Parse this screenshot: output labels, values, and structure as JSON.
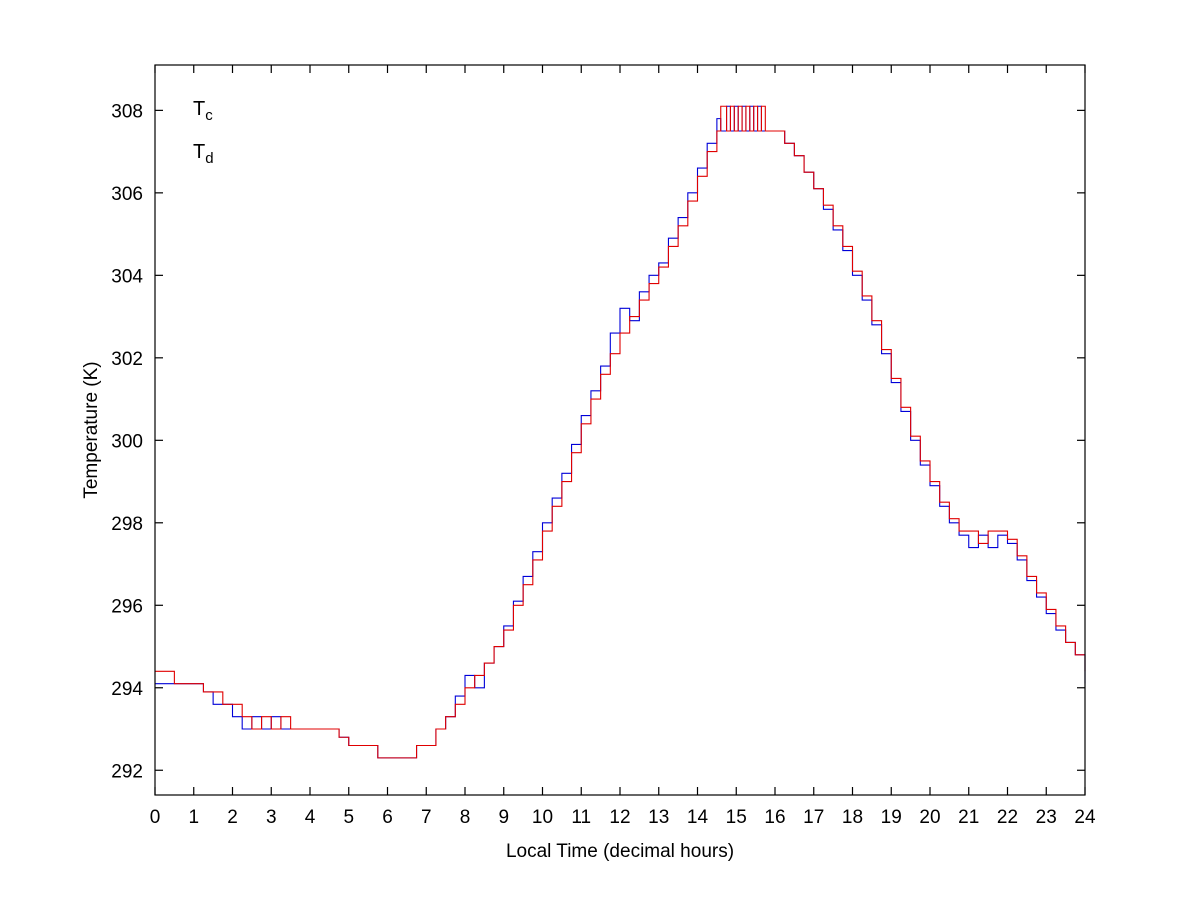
{
  "figure": {
    "background": "#ffffff",
    "axis_color": "#000000"
  },
  "chart_data": {
    "type": "line",
    "line_style": "step",
    "title": "",
    "xlabel": "Local Time (decimal hours)",
    "ylabel": "Temperature (K)",
    "xlim": [
      0,
      24
    ],
    "ylim": [
      291.4,
      309.1
    ],
    "xticks": [
      0,
      1,
      2,
      3,
      4,
      5,
      6,
      7,
      8,
      9,
      10,
      11,
      12,
      13,
      14,
      15,
      16,
      17,
      18,
      19,
      20,
      21,
      22,
      23,
      24
    ],
    "yticks": [
      292,
      294,
      296,
      298,
      300,
      302,
      304,
      306,
      308
    ],
    "grid": false,
    "legend": {
      "position": "top-left-inside",
      "entries": [
        {
          "label": "T_c",
          "color": "#0000d8"
        },
        {
          "label": "T_d",
          "color": "#e00000"
        }
      ]
    },
    "x": [
      0,
      0.25,
      0.5,
      0.75,
      1,
      1.25,
      1.5,
      1.75,
      2,
      2.25,
      2.5,
      2.75,
      3,
      3.25,
      3.5,
      3.75,
      4,
      4.25,
      4.5,
      4.75,
      5,
      5.25,
      5.5,
      5.75,
      6,
      6.25,
      6.5,
      6.75,
      7,
      7.25,
      7.5,
      7.75,
      8,
      8.25,
      8.5,
      8.75,
      9,
      9.25,
      9.5,
      9.75,
      10,
      10.25,
      10.5,
      10.75,
      11,
      11.25,
      11.5,
      11.75,
      12,
      12.25,
      12.5,
      12.75,
      13,
      13.25,
      13.5,
      13.75,
      14,
      14.25,
      14.5,
      14.6,
      14.75,
      14.85,
      14.95,
      15.05,
      15.15,
      15.25,
      15.35,
      15.45,
      15.55,
      15.65,
      15.75,
      16,
      16.25,
      16.5,
      16.75,
      17,
      17.25,
      17.5,
      17.75,
      18,
      18.25,
      18.5,
      18.75,
      19,
      19.25,
      19.5,
      19.75,
      20,
      20.25,
      20.5,
      20.75,
      21,
      21.25,
      21.5,
      21.75,
      22,
      22.25,
      22.5,
      22.75,
      23,
      23.25,
      23.5,
      23.75,
      24
    ],
    "series": [
      {
        "name": "T_c",
        "color": "#0000d8",
        "values": [
          294.1,
          294.1,
          294.1,
          294.1,
          294.1,
          293.9,
          293.6,
          293.6,
          293.3,
          293.0,
          293.3,
          293.0,
          293.3,
          293.0,
          293.0,
          293.0,
          293.0,
          293.0,
          293.0,
          292.8,
          292.6,
          292.6,
          292.6,
          292.3,
          292.3,
          292.3,
          292.3,
          292.6,
          292.6,
          293.0,
          293.3,
          293.8,
          294.3,
          294.0,
          294.6,
          295.0,
          295.5,
          296.1,
          296.7,
          297.3,
          298.0,
          298.6,
          299.2,
          299.9,
          300.6,
          301.2,
          301.8,
          302.6,
          303.2,
          302.9,
          303.6,
          304.0,
          304.3,
          304.9,
          305.4,
          306.0,
          306.6,
          307.2,
          307.8,
          307.5,
          308.1,
          307.5,
          308.1,
          307.5,
          308.1,
          307.5,
          308.1,
          307.5,
          308.1,
          307.5,
          307.5,
          307.5,
          307.2,
          306.9,
          306.5,
          306.1,
          305.6,
          305.1,
          304.6,
          304.0,
          303.4,
          302.8,
          302.1,
          301.4,
          300.7,
          300.0,
          299.4,
          298.9,
          298.4,
          298.0,
          297.7,
          297.4,
          297.7,
          297.4,
          297.7,
          297.5,
          297.1,
          296.6,
          296.2,
          295.8,
          295.4,
          295.1,
          294.8,
          294.1
        ]
      },
      {
        "name": "T_d",
        "color": "#e00000",
        "values": [
          294.4,
          294.4,
          294.1,
          294.1,
          294.1,
          293.9,
          293.9,
          293.6,
          293.6,
          293.3,
          293.0,
          293.3,
          293.0,
          293.3,
          293.0,
          293.0,
          293.0,
          293.0,
          293.0,
          292.8,
          292.6,
          292.6,
          292.6,
          292.3,
          292.3,
          292.3,
          292.3,
          292.6,
          292.6,
          293.0,
          293.3,
          293.6,
          294.0,
          294.3,
          294.6,
          295.0,
          295.4,
          296.0,
          296.5,
          297.1,
          297.8,
          298.4,
          299.0,
          299.7,
          300.4,
          301.0,
          301.6,
          302.1,
          302.6,
          303.0,
          303.4,
          303.8,
          304.2,
          304.7,
          305.2,
          305.8,
          306.4,
          307.0,
          307.5,
          308.1,
          307.5,
          308.1,
          307.5,
          308.1,
          307.5,
          308.1,
          307.5,
          308.1,
          307.5,
          308.1,
          307.5,
          307.5,
          307.2,
          306.9,
          306.5,
          306.1,
          305.7,
          305.2,
          304.7,
          304.1,
          303.5,
          302.9,
          302.2,
          301.5,
          300.8,
          300.1,
          299.5,
          299.0,
          298.5,
          298.1,
          297.8,
          297.8,
          297.5,
          297.8,
          297.8,
          297.6,
          297.2,
          296.7,
          296.3,
          295.9,
          295.5,
          295.1,
          294.8,
          294.4
        ]
      }
    ]
  }
}
